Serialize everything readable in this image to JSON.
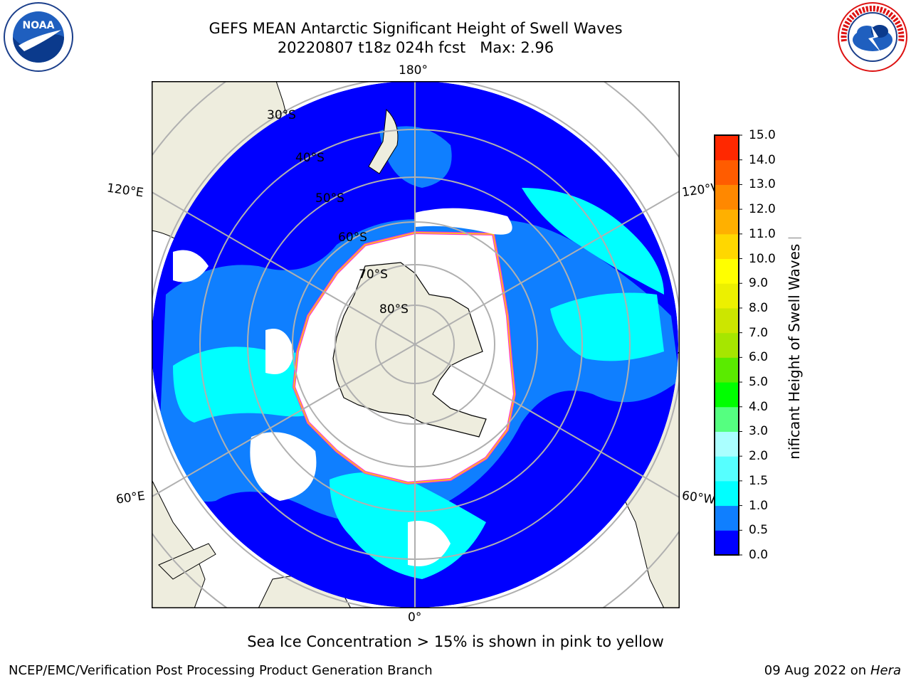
{
  "header": {
    "title_line1": "GEFS MEAN Antarctic Significant Height of Swell Waves",
    "title_line2": "20220807 t18z 024h fcst   Max: 2.96"
  },
  "logos": {
    "left": "NOAA",
    "right": "NATIONAL WEATHER SERVICE"
  },
  "map": {
    "projection": "south-polar-stereographic",
    "longitude_labels": {
      "top": "180°",
      "bottom": "0°",
      "left_upper": "120°E",
      "left_lower": "60°E",
      "right_upper": "120°W",
      "right_lower": "60°W"
    },
    "latitude_labels": [
      "30°S",
      "40°S",
      "50°S",
      "60°S",
      "70°S",
      "80°S"
    ],
    "field_colors": {
      "land": "#eeedde",
      "ice_free_low": "#0000ff",
      "swell_low": "#0f7fff",
      "swell_mid": "#00ffff",
      "swell_high": "#56ffff",
      "ice": "#ffffff",
      "ice_edge": [
        "#ff33cc",
        "#ffd700"
      ]
    }
  },
  "colorbar": {
    "title": "Significant Height of Swell Waves [m]",
    "ticks": [
      "0.0",
      "0.5",
      "1.0",
      "1.5",
      "2.0",
      "3.0",
      "4.0",
      "5.0",
      "6.0",
      "7.0",
      "8.0",
      "9.0",
      "10.0",
      "11.0",
      "12.0",
      "13.0",
      "14.0",
      "15.0"
    ],
    "colors": [
      "#0000ff",
      "#0f7fff",
      "#00ffff",
      "#56ffff",
      "#aaffff",
      "#55ff80",
      "#00ff00",
      "#5aeb00",
      "#a6e600",
      "#cce600",
      "#ecf000",
      "#ffff00",
      "#ffd700",
      "#ffb000",
      "#ff8800",
      "#ff5c00",
      "#ff2800"
    ]
  },
  "caption": "Sea Ice Concentration > 15% is shown in pink to yellow",
  "footer": {
    "left": "NCEP/EMC/Verification Post Processing Product Generation Branch",
    "right_date": "09 Aug 2022 on",
    "right_host": "Hera"
  }
}
